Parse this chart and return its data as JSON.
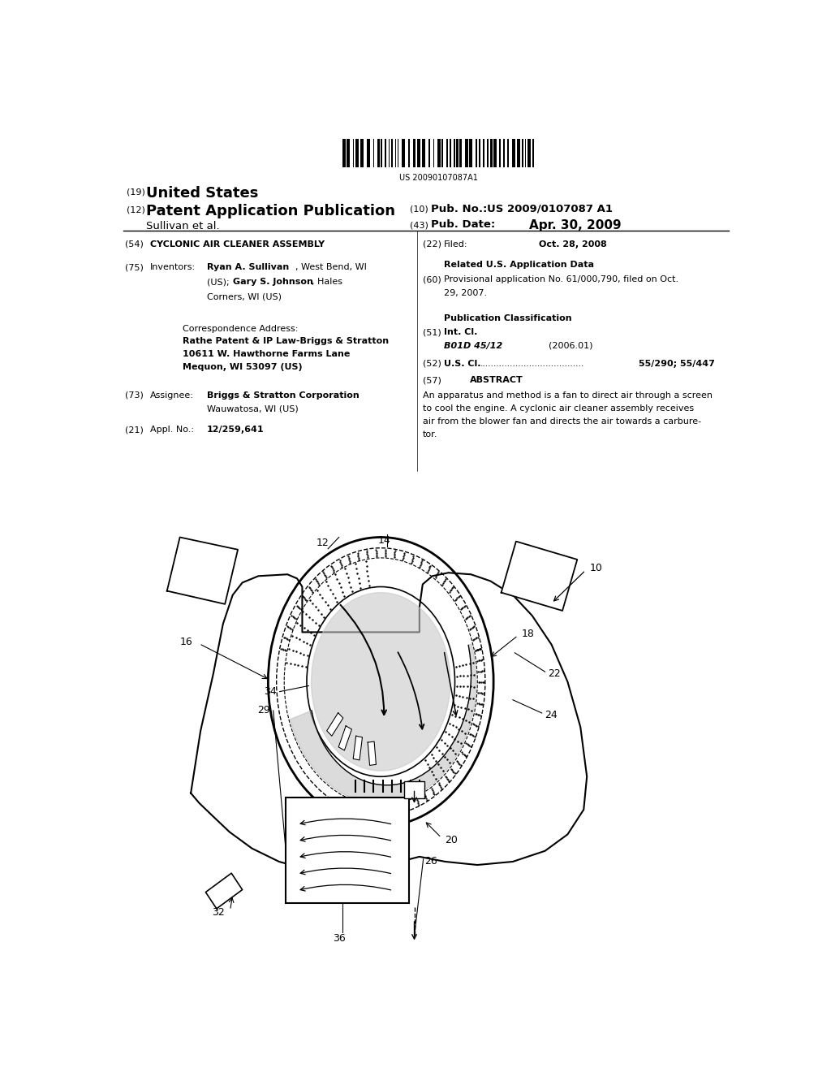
{
  "bg_color": "#ffffff",
  "barcode_text": "US 20090107087A1",
  "header": {
    "num19": "(19)",
    "united_states": "United States",
    "num12": "(12)",
    "pat_app_pub": "Patent Application Publication",
    "sullivan": "Sullivan et al.",
    "num10": "(10)",
    "pub_no_label": "Pub. No.:",
    "pub_no": "US 2009/0107087 A1",
    "num43": "(43)",
    "pub_date_label": "Pub. Date:",
    "pub_date": "Apr. 30, 2009"
  },
  "left_col": {
    "num54": "(54)",
    "title": "CYCLONIC AIR CLEANER ASSEMBLY",
    "num75": "(75)",
    "inventors_label": "Inventors:",
    "corr_label": "Correspondence Address:",
    "corr_name": "Rathe Patent & IP Law-Briggs & Stratton\n10611 W. Hawthorne Farms Lane\nMequon, WI 53097 (US)",
    "num73": "(73)",
    "assignee_label": "Assignee:",
    "num21": "(21)",
    "appl_label": "Appl. No.:",
    "appl_no": "12/259,641"
  },
  "right_col": {
    "num22": "(22)",
    "filed_label": "Filed:",
    "filed_date": "Oct. 28, 2008",
    "related_header": "Related U.S. Application Data",
    "num60": "(60)",
    "prov_text": "Provisional application No. 61/000,790, filed on Oct.\n29, 2007.",
    "pub_class_header": "Publication Classification",
    "num51": "(51)",
    "int_cl_label": "Int. Cl.",
    "int_cl_class": "B01D 45/12",
    "int_cl_year": "(2006.01)",
    "num52": "(52)",
    "us_cl_label": "U.S. Cl.",
    "us_cl_dots": "......................................",
    "us_cl_val": "55/290; 55/447",
    "num57": "(57)",
    "abstract_header": "ABSTRACT",
    "abstract_text": "An apparatus and method is a fan to direct air through a screen\nto cool the engine. A cyclonic air cleaner assembly receives\nair from the blower fan and directs the air towards a carbure-\ntor."
  }
}
